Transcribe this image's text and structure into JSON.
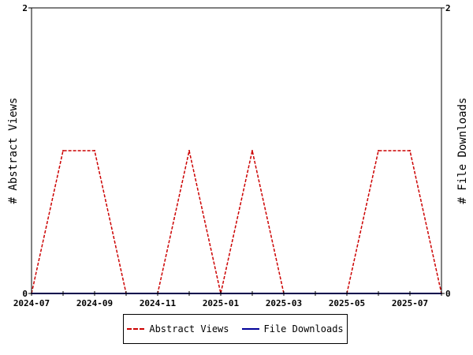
{
  "chart_data": {
    "type": "line",
    "x": [
      "2024-07",
      "2024-08",
      "2024-09",
      "2024-10",
      "2024-11",
      "2024-12",
      "2025-01",
      "2025-02",
      "2025-03",
      "2025-04",
      "2025-05",
      "2025-06",
      "2025-07",
      "2025-08"
    ],
    "x_tick_labels": [
      "2024-07",
      "2024-09",
      "2024-11",
      "2025-01",
      "2025-03",
      "2025-05",
      "2025-07"
    ],
    "series": [
      {
        "name": "Abstract Views",
        "axis": "left",
        "color": "#cc0000",
        "style": "dashed",
        "values": [
          0,
          1,
          1,
          0,
          0,
          1,
          0,
          1,
          0,
          0,
          0,
          1,
          1,
          0
        ]
      },
      {
        "name": "File Downloads",
        "axis": "right",
        "color": "#000099",
        "style": "solid",
        "values": [
          0,
          0,
          0,
          0,
          0,
          0,
          0,
          0,
          0,
          0,
          0,
          0,
          0,
          0
        ]
      }
    ],
    "ylabel": "# Abstract Views",
    "y2label": "# File Downloads",
    "ylim": [
      0,
      2
    ],
    "y2lim": [
      0,
      2
    ],
    "y_ticks": [
      "0",
      "2"
    ],
    "y2_ticks": [
      "0",
      "2"
    ],
    "grid": false,
    "legend_position": "bottom"
  }
}
